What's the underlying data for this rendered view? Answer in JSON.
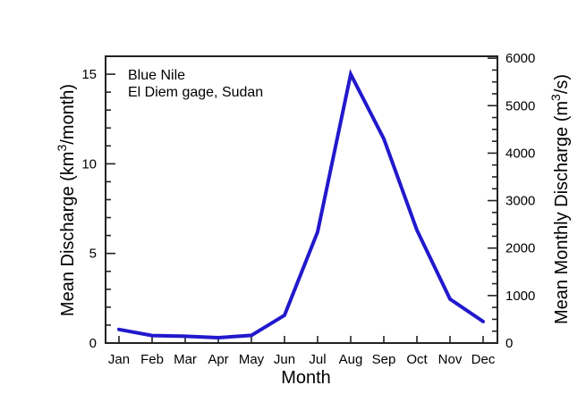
{
  "chart_data": {
    "type": "line",
    "annotation": {
      "line1": "Blue Nile",
      "line2": "El Diem gage, Sudan"
    },
    "xlabel": "Month",
    "ylabel_left": {
      "pre": "Mean Discharge (km",
      "sup": "3",
      "post": "/month)"
    },
    "ylabel_right": {
      "pre": "Mean Monthly Discharge (m",
      "sup": "3",
      "post": "/s)"
    },
    "categories": [
      "Jan",
      "Feb",
      "Mar",
      "Apr",
      "May",
      "Jun",
      "Jul",
      "Aug",
      "Sep",
      "Oct",
      "Nov",
      "Dec"
    ],
    "series": [
      {
        "name": "mean-discharge",
        "units": "km3/month",
        "values": [
          0.76,
          0.42,
          0.38,
          0.3,
          0.43,
          1.55,
          6.2,
          15.0,
          11.4,
          6.3,
          2.45,
          1.2
        ]
      },
      {
        "name": "mean-monthly-discharge-right-axis-equivalent",
        "units": "m3/s",
        "values": [
          288,
          158,
          143,
          113,
          162,
          585,
          2340,
          5660,
          4305,
          2380,
          925,
          455
        ]
      }
    ],
    "axes": {
      "left": {
        "ylim": [
          0,
          16
        ],
        "major_ticks": [
          0,
          5,
          10,
          15
        ],
        "minor_step": 1
      },
      "right": {
        "ylim": [
          0,
          6040
        ],
        "major_ticks": [
          0,
          1000,
          2000,
          3000,
          4000,
          5000,
          6000
        ],
        "minor_step": 250
      },
      "grid": false,
      "legend": false
    },
    "colors": {
      "line": "#2218cc",
      "frame": "#222222",
      "text": "#000000",
      "background": "#ffffff"
    }
  }
}
